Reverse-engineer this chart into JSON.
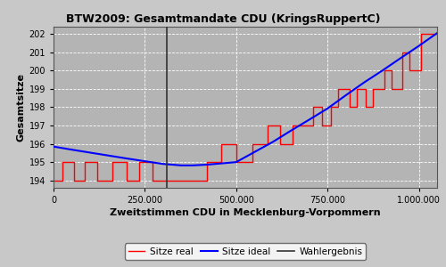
{
  "title": "BTW2009: Gesamtmandate CDU (KringsRuppertC)",
  "xlabel": "Zweitstimmen CDU in Mecklenburg-Vorpommern",
  "ylabel": "Gesamtsitze",
  "plot_bg_color": "#b4b4b4",
  "fig_bg_color": "#c8c8c8",
  "wahlergebnis": 310000,
  "xmin": 0,
  "xmax": 1050000,
  "ymin": 193.6,
  "ymax": 202.4,
  "yticks": [
    194,
    195,
    196,
    197,
    198,
    199,
    200,
    201,
    202
  ],
  "xticks": [
    0,
    250000,
    500000,
    750000,
    1000000
  ],
  "xtick_labels": [
    "0",
    "250.000",
    "500.000",
    "750.000",
    "1.000.000"
  ],
  "ideal_x": [
    0,
    50000,
    100000,
    150000,
    200000,
    250000,
    300000,
    350000,
    380000,
    420000,
    460000,
    500000,
    550000,
    600000,
    650000,
    700000,
    750000,
    800000,
    850000,
    900000,
    950000,
    1000000,
    1050000
  ],
  "ideal_y": [
    195.85,
    195.68,
    195.52,
    195.36,
    195.2,
    195.05,
    194.9,
    194.82,
    194.82,
    194.86,
    194.93,
    195.0,
    195.55,
    196.1,
    196.72,
    197.32,
    197.93,
    198.65,
    199.35,
    200.0,
    200.68,
    201.35,
    202.05
  ],
  "real_x": [
    0,
    25000,
    25000,
    55000,
    55000,
    85000,
    85000,
    120000,
    120000,
    160000,
    160000,
    200000,
    200000,
    235000,
    235000,
    270000,
    270000,
    310000,
    310000,
    420000,
    420000,
    460000,
    460000,
    500000,
    500000,
    545000,
    545000,
    585000,
    585000,
    620000,
    620000,
    655000,
    655000,
    685000,
    685000,
    710000,
    710000,
    735000,
    735000,
    760000,
    760000,
    780000,
    780000,
    810000,
    810000,
    830000,
    830000,
    855000,
    855000,
    875000,
    875000,
    905000,
    905000,
    925000,
    925000,
    955000,
    955000,
    975000,
    975000,
    1005000,
    1005000,
    1050000
  ],
  "real_y": [
    194,
    194,
    195,
    195,
    194,
    194,
    195,
    195,
    194,
    194,
    195,
    195,
    194,
    194,
    195,
    195,
    194,
    194,
    194,
    194,
    195,
    195,
    196,
    196,
    195,
    195,
    196,
    196,
    197,
    197,
    196,
    196,
    197,
    197,
    197,
    197,
    198,
    198,
    197,
    197,
    198,
    198,
    199,
    199,
    198,
    198,
    199,
    199,
    198,
    198,
    199,
    199,
    200,
    200,
    199,
    199,
    201,
    201,
    200,
    200,
    202,
    202
  ],
  "line_real_color": "red",
  "line_ideal_color": "blue",
  "line_wahlergebnis_color": "#333333",
  "legend_real": "Sitze real",
  "legend_ideal": "Sitze ideal",
  "legend_wahlergebnis": "Wahlergebnis"
}
